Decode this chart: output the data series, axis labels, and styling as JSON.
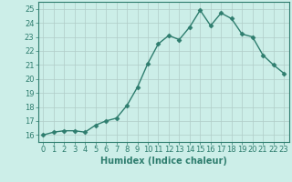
{
  "x": [
    0,
    1,
    2,
    3,
    4,
    5,
    6,
    7,
    8,
    9,
    10,
    11,
    12,
    13,
    14,
    15,
    16,
    17,
    18,
    19,
    20,
    21,
    22,
    23
  ],
  "y": [
    16.0,
    16.2,
    16.3,
    16.3,
    16.2,
    16.7,
    17.0,
    17.2,
    18.1,
    19.4,
    21.1,
    22.5,
    23.1,
    22.8,
    23.7,
    24.9,
    23.8,
    24.7,
    24.3,
    23.2,
    23.0,
    21.7,
    21.0,
    20.4
  ],
  "line_color": "#2e7d6e",
  "marker": "D",
  "markersize": 2.5,
  "linewidth": 1.0,
  "xlabel": "Humidex (Indice chaleur)",
  "xlim": [
    -0.5,
    23.5
  ],
  "ylim": [
    15.5,
    25.5
  ],
  "yticks": [
    16,
    17,
    18,
    19,
    20,
    21,
    22,
    23,
    24,
    25
  ],
  "xticks": [
    0,
    1,
    2,
    3,
    4,
    5,
    6,
    7,
    8,
    9,
    10,
    11,
    12,
    13,
    14,
    15,
    16,
    17,
    18,
    19,
    20,
    21,
    22,
    23
  ],
  "bg_color": "#cceee8",
  "grid_color": "#b0ccc8",
  "tick_color": "#2e7d6e",
  "label_color": "#2e7d6e",
  "tick_fontsize": 6,
  "xlabel_fontsize": 7
}
